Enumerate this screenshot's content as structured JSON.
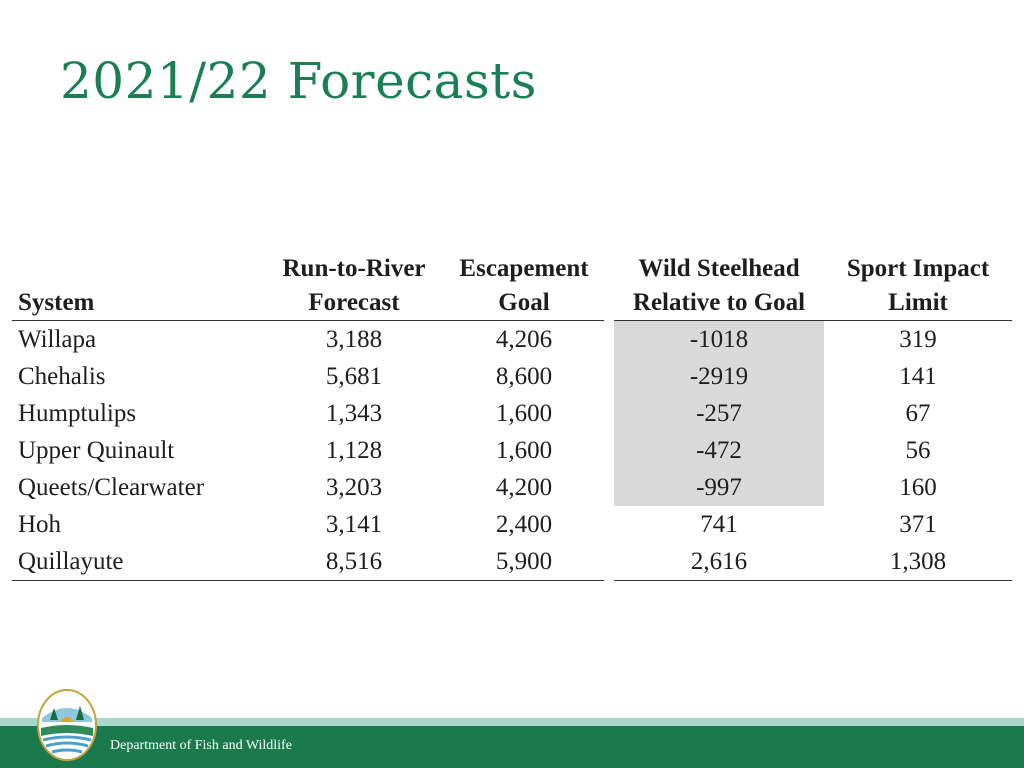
{
  "slide": {
    "title": "2021/22 Forecasts",
    "footer_text": "Department of Fish and Wildlife",
    "logo_icon": "wdfw-logo-icon",
    "colors": {
      "title": "#1b7f55",
      "footer": "#1a7a4c",
      "footer_band": "#a8d8cc",
      "shade": "#d9d9d9"
    }
  },
  "table": {
    "headers": {
      "system": "System",
      "forecast_1": "Run-to-River",
      "forecast_2": "Forecast",
      "goal_1": "Escapement",
      "goal_2": "Goal",
      "rel_1": "Wild Steelhead",
      "rel_2": "Relative to Goal",
      "limit_1": "Sport Impact",
      "limit_2": "Limit"
    },
    "rows": [
      {
        "system": "Willapa",
        "forecast": "3,188",
        "goal": "4,206",
        "relative": "-1018",
        "limit": "319"
      },
      {
        "system": "Chehalis",
        "forecast": "5,681",
        "goal": "8,600",
        "relative": "-2919",
        "limit": "141"
      },
      {
        "system": "Humptulips",
        "forecast": "1,343",
        "goal": "1,600",
        "relative": "-257",
        "limit": "67"
      },
      {
        "system": "Upper Quinault",
        "forecast": "1,128",
        "goal": "1,600",
        "relative": "-472",
        "limit": "56"
      },
      {
        "system": "Queets/Clearwater",
        "forecast": "3,203",
        "goal": "4,200",
        "relative": "-997",
        "limit": "160"
      },
      {
        "system": "Hoh",
        "forecast": "3,141",
        "goal": "2,400",
        "relative": "741",
        "limit": "371"
      },
      {
        "system": "Quillayute",
        "forecast": "8,516",
        "goal": "5,900",
        "relative": "2,616",
        "limit": "1,308"
      }
    ]
  }
}
